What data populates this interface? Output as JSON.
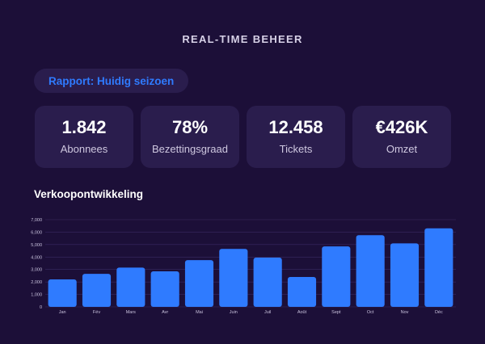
{
  "header": {
    "title": "REAL-TIME BEHEER"
  },
  "report": {
    "label": "Rapport: Huidig seizoen"
  },
  "kpis": [
    {
      "value": "1.842",
      "label": "Abonnees"
    },
    {
      "value": "78%",
      "label": "Bezettingsgraad"
    },
    {
      "value": "12.458",
      "label": "Tickets"
    },
    {
      "value": "€426K",
      "label": "Omzet"
    }
  ],
  "colors": {
    "background": "#1c0f38",
    "card": "#2a1d4d",
    "accent": "#2f7bff",
    "grid": "#3a2a63"
  },
  "chart_data": {
    "type": "bar",
    "title": "Verkoopontwikkeling",
    "categories": [
      "Jan",
      "Fév",
      "Mars",
      "Avr",
      "Mai",
      "Juin",
      "Juil",
      "Août",
      "Sept",
      "Oct",
      "Nov",
      "Déc"
    ],
    "values": [
      2200,
      2650,
      3150,
      2850,
      3750,
      4650,
      3950,
      2400,
      4850,
      5750,
      5100,
      6300
    ],
    "ylim": [
      0,
      7000
    ],
    "yticks": [
      "0",
      "1,000",
      "2,000",
      "3,000",
      "4,000",
      "5,000",
      "6,000",
      "7,000"
    ],
    "ytick_values": [
      0,
      1000,
      2000,
      3000,
      4000,
      5000,
      6000,
      7000
    ],
    "grid": true,
    "bar_color": "#2f7bff"
  }
}
